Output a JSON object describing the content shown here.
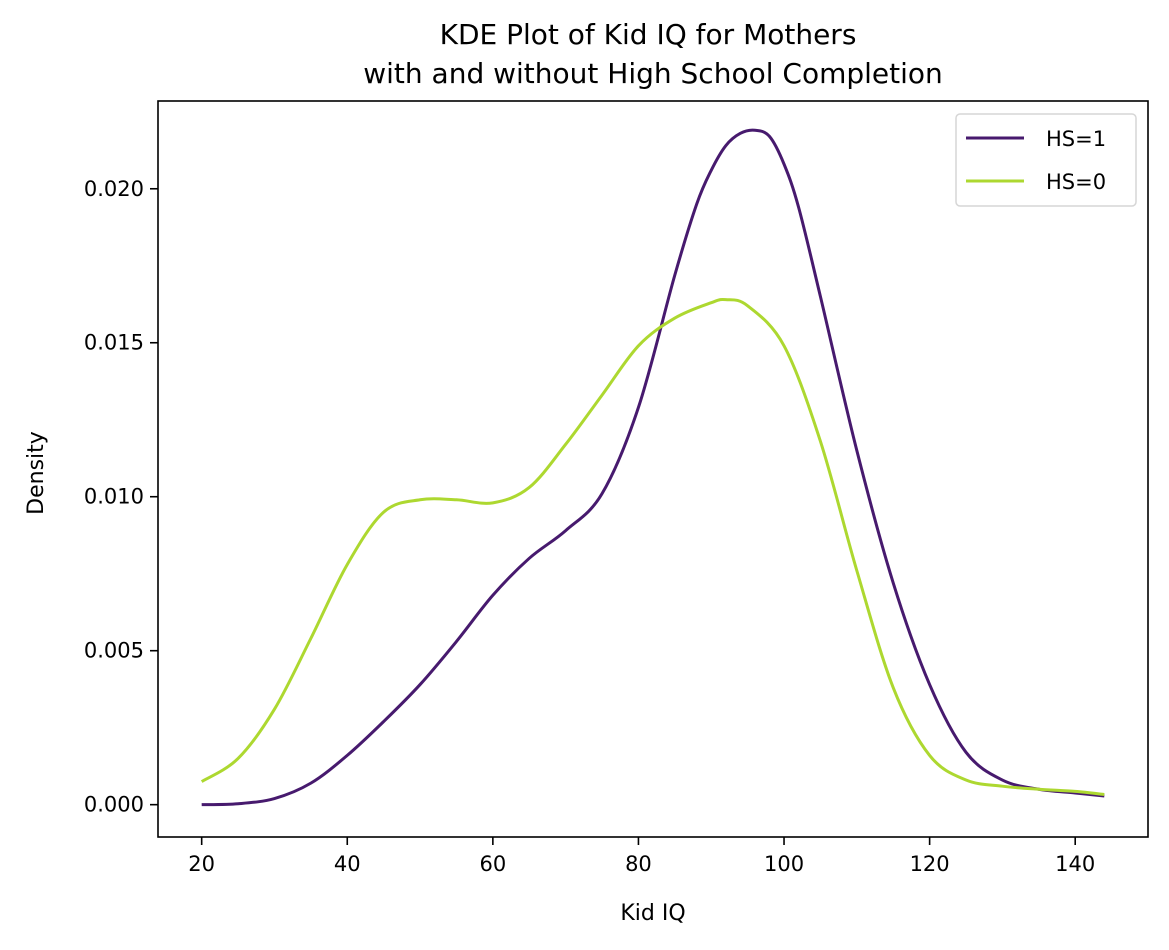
{
  "chart_data": {
    "type": "line",
    "title_lines": [
      "KDE Plot of Kid IQ for Mothers",
      "with and without High School Completion"
    ],
    "xlabel": "Kid IQ",
    "ylabel": "Density",
    "xlim": [
      14,
      150
    ],
    "ylim": [
      -0.00105,
      0.02285
    ],
    "xticks": [
      20,
      40,
      60,
      80,
      100,
      120,
      140
    ],
    "xtick_labels": [
      "20",
      "40",
      "60",
      "80",
      "100",
      "120",
      "140"
    ],
    "yticks": [
      0.0,
      0.005,
      0.01,
      0.015,
      0.02
    ],
    "ytick_labels": [
      "0.000",
      "0.005",
      "0.010",
      "0.015",
      "0.020"
    ],
    "grid": false,
    "legend_position": "top-right",
    "series": [
      {
        "name": "HS=1",
        "color": "#471a6e",
        "x": [
          20,
          25,
          30,
          35,
          40,
          45,
          50,
          55,
          60,
          65,
          70,
          75,
          80,
          85,
          88,
          90,
          92,
          94,
          96,
          98,
          100,
          102,
          105,
          110,
          115,
          120,
          125,
          130,
          135,
          140,
          144
        ],
        "y": [
          0.0,
          3e-05,
          0.0002,
          0.0007,
          0.0016,
          0.0027,
          0.0039,
          0.0053,
          0.0068,
          0.008,
          0.0089,
          0.0101,
          0.0129,
          0.0172,
          0.0195,
          0.0206,
          0.0214,
          0.0218,
          0.0219,
          0.0217,
          0.0208,
          0.0194,
          0.0165,
          0.0115,
          0.0072,
          0.0039,
          0.0017,
          0.0008,
          0.0005,
          0.00038,
          0.00028
        ]
      },
      {
        "name": "HS=0",
        "color": "#add830",
        "x": [
          20,
          25,
          30,
          35,
          40,
          45,
          50,
          55,
          60,
          65,
          70,
          75,
          80,
          85,
          90,
          92,
          95,
          100,
          105,
          110,
          115,
          120,
          125,
          130,
          135,
          140,
          144
        ],
        "y": [
          0.00075,
          0.0015,
          0.0031,
          0.0054,
          0.0078,
          0.0095,
          0.0099,
          0.0099,
          0.0098,
          0.0103,
          0.0117,
          0.0133,
          0.0149,
          0.0158,
          0.0163,
          0.0164,
          0.0162,
          0.0149,
          0.0118,
          0.0076,
          0.0038,
          0.0016,
          0.0008,
          0.0006,
          0.0005,
          0.00043,
          0.00033
        ]
      }
    ]
  }
}
